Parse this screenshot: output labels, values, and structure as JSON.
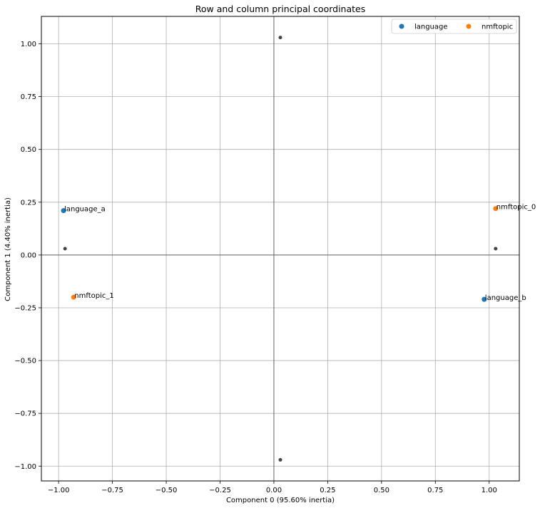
{
  "chart_data": {
    "type": "scatter",
    "title": "Row and column principal coordinates",
    "xlabel": "Component 0 (95.60% inertia)",
    "ylabel": "Component 1 (4.40% inertia)",
    "xlim": [
      -1.08,
      1.14
    ],
    "ylim": [
      -1.07,
      1.13
    ],
    "xticks": [
      -1.0,
      -0.75,
      -0.5,
      -0.25,
      0.0,
      0.25,
      0.5,
      0.75,
      1.0
    ],
    "xtick_labels": [
      "−1.00",
      "−0.75",
      "−0.50",
      "−0.25",
      "0.00",
      "0.25",
      "0.50",
      "0.75",
      "1.00"
    ],
    "yticks": [
      1.0,
      0.75,
      0.5,
      0.25,
      0.0,
      -0.25,
      -0.5,
      -0.75,
      -1.0
    ],
    "ytick_labels": [
      "1.00",
      "0.75",
      "0.50",
      "0.25",
      "0.00",
      "−0.25",
      "−0.50",
      "−0.75",
      "−1.00"
    ],
    "grid": true,
    "legend_position": "top-right",
    "series": [
      {
        "name": "language",
        "color": "#1f77b4",
        "points": [
          {
            "label": "language_a",
            "x": -0.977,
            "y": 0.21
          },
          {
            "label": "language_b",
            "x": 0.977,
            "y": -0.21
          }
        ]
      },
      {
        "name": "nmftopic",
        "color": "#ff7f0e",
        "points": [
          {
            "label": "nmftopic_0",
            "x": 1.03,
            "y": 0.22
          },
          {
            "label": "nmftopic_1",
            "x": -0.93,
            "y": -0.2
          }
        ]
      }
    ],
    "marker_points": {
      "color": "#444444",
      "points": [
        {
          "x": 0.03,
          "y": 1.03
        },
        {
          "x": -0.97,
          "y": 0.03
        },
        {
          "x": 1.03,
          "y": 0.03
        },
        {
          "x": 0.03,
          "y": -0.97
        }
      ]
    }
  }
}
